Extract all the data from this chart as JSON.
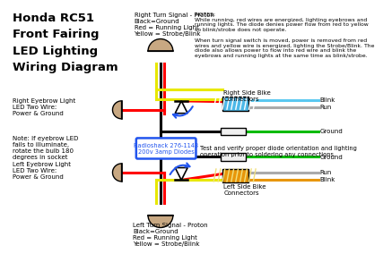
{
  "title": "Honda RC51\nFront Fairing\nLED Lighting\nWiring Diagram",
  "bg_color": "#ffffff",
  "right_turn_label": "Right Turn Signal - Proton\nBlack=Ground\nRed = Running Light\nYellow = Strobe/Blink",
  "left_turn_label": "Left Turn Signal - Proton\nBlack=Ground\nRed = Running Light\nYellow = Strobe/Blink",
  "right_eyebrow_label": "Right Eyebrow Light\nLED Two Wire:\nPower & Ground",
  "left_eyebrow_label": "Left Eyebrow Light\nLED Two Wire:\nPower & Ground",
  "note_label": "Note: If eyebrow LED\nfails to illuminate,\nrotate the bulb 180\ndegrees in socket",
  "radioshack_label": "Radioshack 276-1143\n200v 3amp Diodes",
  "right_connector_label": "Right Side Bike\nConnectors",
  "left_connector_label": "Left Side Bike\nConnectors",
  "blink_label": "Blink",
  "run_label": "Run",
  "ground_label": "Ground",
  "test_label": "Test and verify proper diode orientation and lighting\noperation prior to soldering any connections.",
  "notes_label": "NOTES:\nWhile running, red wires are energized, lighting eyebrows and\nrunning lights. The diode denies power flow from red to yellow\nso blink/strobe does not operate.\n\nWhen turn signal switch is moved, power is removed from red\nwires and yellow wire is energized, lighting the Strobe/Blink. The\ndiode also allows power to flow into red wire and blink the\neyebrows and running lights at the same time as blink/strobe.",
  "wire_red": "#ff0000",
  "wire_yellow": "#e8e800",
  "wire_black": "#000000",
  "wire_green": "#00bb00",
  "wire_blue_light": "#5bc8f0",
  "wire_orange": "#e8960a",
  "wire_gray": "#aaaaaa",
  "wire_lw": 2.2,
  "connector_right_color": "#4db8e8",
  "connector_left_color": "#e8960a",
  "connector_ground_color": "#e8e8e8",
  "lamp_color": "#c8a882",
  "diode_arrow_color": "#2255ee",
  "rs_box_color": "#2255ee"
}
